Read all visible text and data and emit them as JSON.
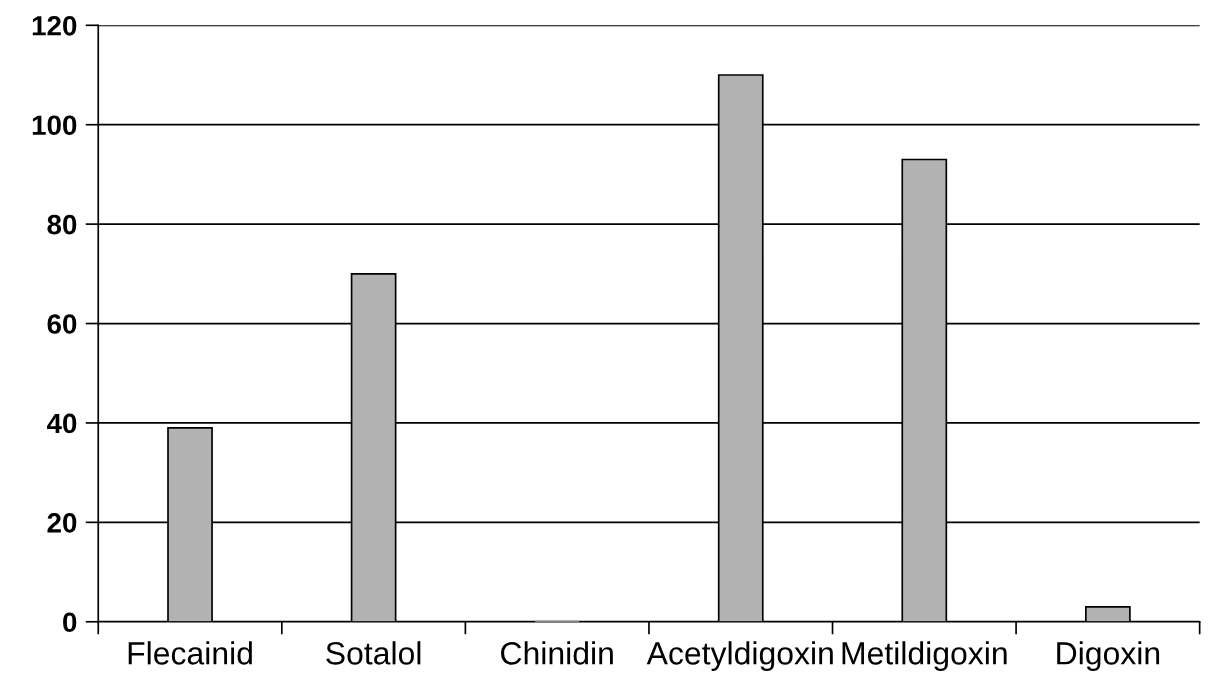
{
  "chart_data": {
    "type": "bar",
    "categories": [
      "Flecainid",
      "Sotalol",
      "Chinidin",
      "Acetyldigoxin",
      "Metildigoxin",
      "Digoxin"
    ],
    "values": [
      39,
      70,
      0,
      110,
      93,
      3
    ],
    "color": "#b2b2b2",
    "ylim": [
      0,
      120
    ],
    "yticks": [
      0,
      20,
      40,
      60,
      80,
      100,
      120
    ],
    "grid": "y"
  }
}
